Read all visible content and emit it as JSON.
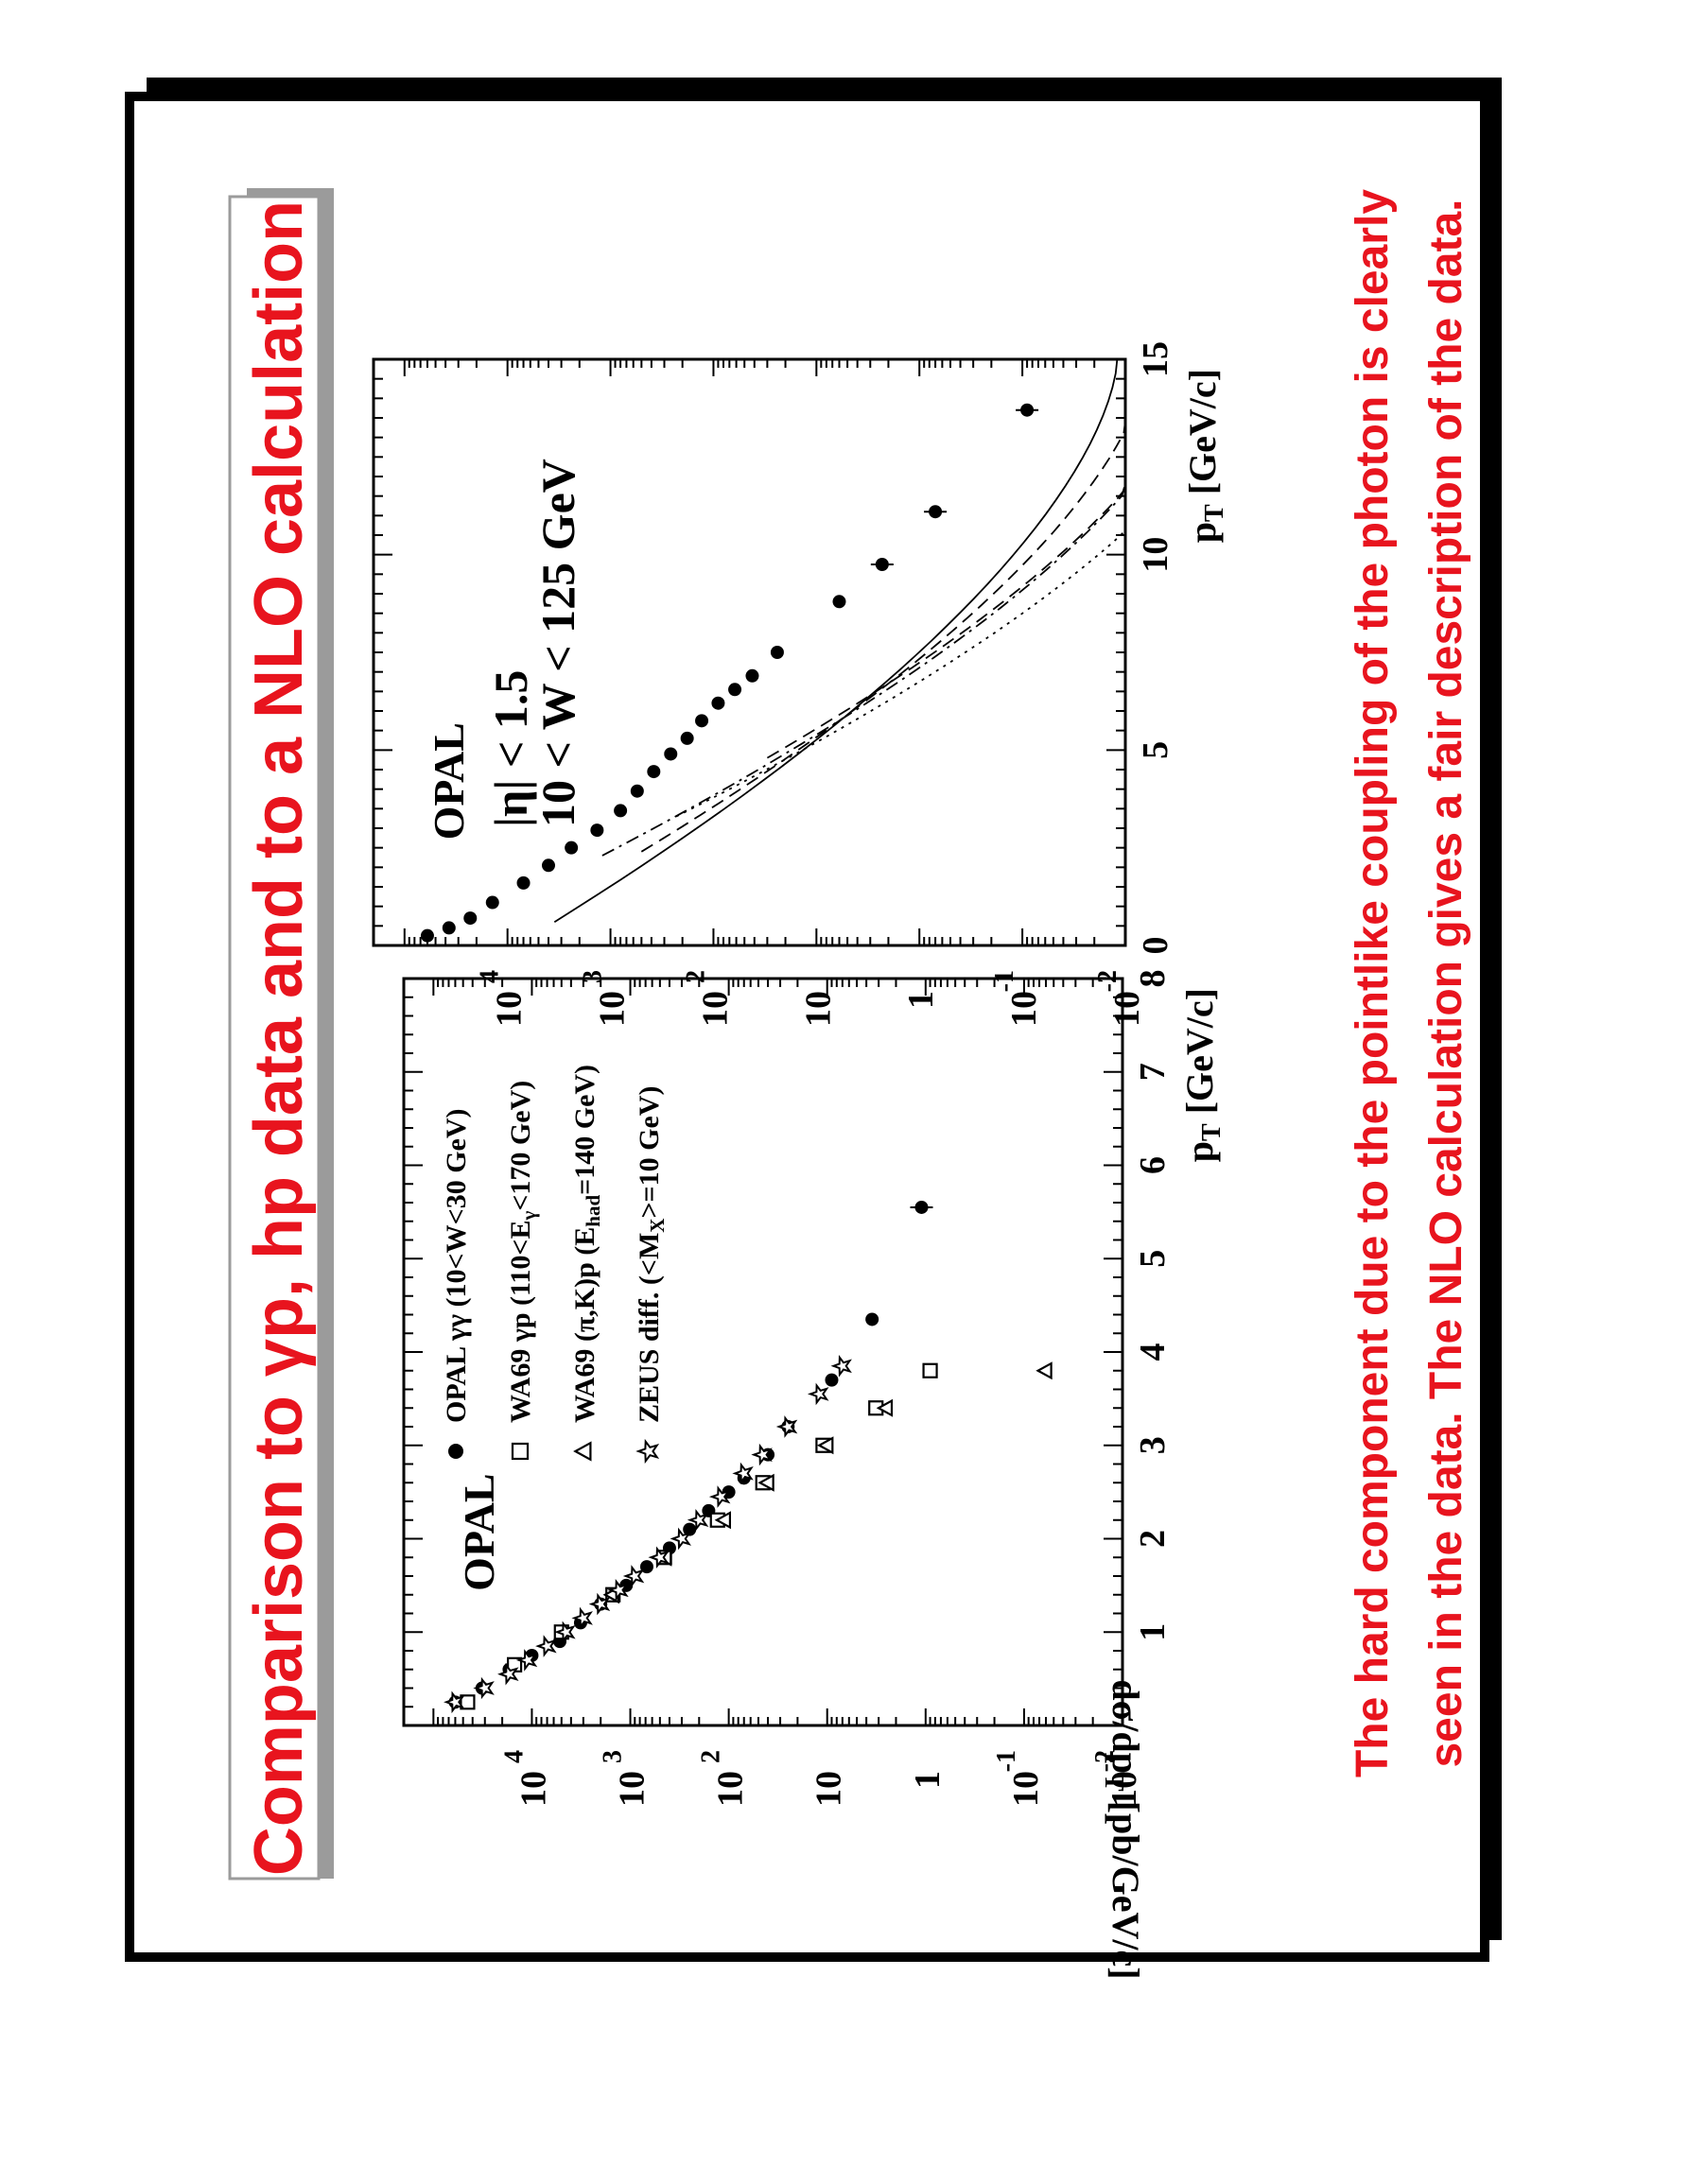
{
  "slide": {
    "title": "Comparison to γp, hp data and to a NLO calculation",
    "caption_line1": "The hard component due to the pointlike coupling of the photon is clearly",
    "caption_line2": "seen in the data.  The NLO calculation gives a fair description of the data.",
    "accent_color": "#e8141e"
  },
  "chart_data": [
    {
      "type": "scatter",
      "panel": "left",
      "title": "",
      "label": "OPAL",
      "xlabel": "p_T [GeV/c]",
      "ylabel": "dσ/dp_T [pb/GeV/c]",
      "xlim": [
        0,
        8
      ],
      "ylim": [
        0.01,
        200000
      ],
      "yscale": "log",
      "x_ticks": [
        1,
        2,
        3,
        4,
        5,
        6,
        7,
        8
      ],
      "y_ticks": [
        {
          "value": 0.01,
          "base": "10",
          "exp": "-2"
        },
        {
          "value": 0.1,
          "base": "10",
          "exp": "-1"
        },
        {
          "value": 1,
          "base": "1",
          "exp": ""
        },
        {
          "value": 10,
          "base": "10",
          "exp": ""
        },
        {
          "value": 100,
          "base": "10",
          "exp": "2"
        },
        {
          "value": 1000,
          "base": "10",
          "exp": "3"
        },
        {
          "value": 10000,
          "base": "10",
          "exp": "4"
        }
      ],
      "legend": [
        {
          "marker": "circle",
          "text": "OPAL γγ (10<W<30 GeV)"
        },
        {
          "marker": "square",
          "text": "WA69 γp (110<E_γ<170 GeV)"
        },
        {
          "marker": "triangle",
          "text": "WA69 (π,K)p (E_had=140 GeV)"
        },
        {
          "marker": "star",
          "text": "ZEUS diff. (<M_X>=10 GeV)"
        }
      ],
      "series": [
        {
          "name": "OPAL γγ (10<W<30 GeV)",
          "marker": "circle",
          "points": [
            [
              0.25,
              60000
            ],
            [
              0.4,
              32000
            ],
            [
              0.6,
              17000
            ],
            [
              0.75,
              10000
            ],
            [
              0.9,
              5200
            ],
            [
              1.1,
              3200
            ],
            [
              1.3,
              2000
            ],
            [
              1.5,
              1100
            ],
            [
              1.7,
              680
            ],
            [
              1.9,
              400
            ],
            [
              2.1,
              250
            ],
            [
              2.3,
              160
            ],
            [
              2.5,
              100
            ],
            [
              2.65,
              70
            ],
            [
              2.9,
              40
            ],
            [
              3.2,
              25
            ],
            [
              3.7,
              9
            ],
            [
              4.35,
              3.5
            ],
            [
              5.55,
              1.1
            ]
          ]
        },
        {
          "name": "WA69 γp (110<E_γ<170 GeV)",
          "marker": "square",
          "points": [
            [
              0.25,
              45000
            ],
            [
              0.65,
              15000
            ],
            [
              1.0,
              5000
            ],
            [
              1.4,
              1500
            ],
            [
              1.8,
              450
            ],
            [
              2.2,
              130
            ],
            [
              2.6,
              45
            ],
            [
              3.0,
              11
            ],
            [
              3.4,
              3.2
            ],
            [
              3.8,
              0.9
            ]
          ]
        },
        {
          "name": "WA69 (π,K)p (E_had=140 GeV)",
          "marker": "triangle",
          "points": [
            [
              1.4,
              1500
            ],
            [
              1.8,
              440
            ],
            [
              2.2,
              110
            ],
            [
              2.6,
              40
            ],
            [
              3.0,
              10
            ],
            [
              3.4,
              2.5
            ],
            [
              3.8,
              0.06
            ]
          ]
        },
        {
          "name": "ZEUS diff. (<M_X>=10 GeV)",
          "marker": "star",
          "points": [
            [
              0.25,
              60000
            ],
            [
              0.4,
              30000
            ],
            [
              0.55,
              17000
            ],
            [
              0.7,
              11000
            ],
            [
              0.85,
              7000
            ],
            [
              1.0,
              4500
            ],
            [
              1.15,
              3000
            ],
            [
              1.3,
              2000
            ],
            [
              1.45,
              1300
            ],
            [
              1.6,
              900
            ],
            [
              1.8,
              500
            ],
            [
              2.0,
              300
            ],
            [
              2.2,
              200
            ],
            [
              2.45,
              120
            ],
            [
              2.7,
              70
            ],
            [
              2.9,
              45
            ],
            [
              3.2,
              25
            ],
            [
              3.55,
              12
            ],
            [
              3.85,
              7
            ]
          ]
        }
      ]
    },
    {
      "type": "scatter",
      "panel": "right",
      "title": "",
      "label": "OPAL",
      "cut1": "|η| < 1.5",
      "cut2": "10 < W < 125 GeV",
      "xlabel": "p_T [GeV/c]",
      "ylabel": "",
      "xlim": [
        0,
        15
      ],
      "ylim": [
        0.01,
        200000
      ],
      "yscale": "log",
      "x_ticks": [
        0,
        5,
        10,
        15
      ],
      "y_ticks": [
        {
          "value": 0.01,
          "base": "10",
          "exp": "-2"
        },
        {
          "value": 0.1,
          "base": "10",
          "exp": "-1"
        },
        {
          "value": 1,
          "base": "1",
          "exp": ""
        },
        {
          "value": 10,
          "base": "10",
          "exp": ""
        },
        {
          "value": 100,
          "base": "10",
          "exp": "2"
        },
        {
          "value": 1000,
          "base": "10",
          "exp": "3"
        },
        {
          "value": 10000,
          "base": "10",
          "exp": "4"
        }
      ],
      "series": [
        {
          "name": "",
          "marker": "circle",
          "points": [
            [
              0.25,
              60000
            ],
            [
              0.45,
              37000
            ],
            [
              0.7,
              23000
            ],
            [
              1.1,
              14000
            ],
            [
              1.6,
              7000
            ],
            [
              2.05,
              4000
            ],
            [
              2.5,
              2400
            ],
            [
              2.95,
              1350
            ],
            [
              3.45,
              800
            ],
            [
              3.95,
              550
            ],
            [
              4.45,
              380
            ],
            [
              4.9,
              260
            ],
            [
              5.3,
              180
            ],
            [
              5.75,
              130
            ],
            [
              6.2,
              90
            ],
            [
              6.55,
              62
            ],
            [
              6.9,
              42
            ],
            [
              7.5,
              24
            ],
            [
              8.8,
              6
            ],
            [
              9.75,
              2.3
            ],
            [
              11.1,
              0.7
            ],
            [
              13.7,
              0.09
            ]
          ]
        }
      ],
      "curves": [
        {
          "style": "solid",
          "x0": 0.6,
          "y0": 3500,
          "x1": 15,
          "y1": 0.012
        },
        {
          "style": "dashed",
          "x0": 2.4,
          "y0": 500,
          "x1": 15,
          "y1": 0.006
        },
        {
          "style": "dashed",
          "x0": 4.8,
          "y0": 30,
          "x1": 15,
          "y1": 0.002
        },
        {
          "style": "dotted",
          "x0": 3.3,
          "y0": 230,
          "x1": 15,
          "y1": 0.0007
        },
        {
          "style": "dashdot",
          "x0": 2.3,
          "y0": 1200,
          "x1": 15,
          "y1": 0.002
        }
      ]
    }
  ]
}
